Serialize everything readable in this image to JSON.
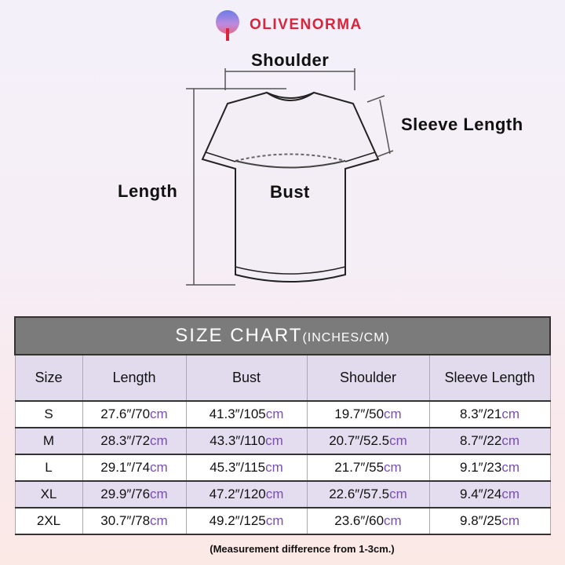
{
  "brand": {
    "name": "OLIVENORMA"
  },
  "diagram": {
    "shoulder": "Shoulder",
    "sleeve_length": "Sleeve Length",
    "length": "Length",
    "bust": "Bust"
  },
  "table": {
    "title": "SIZE CHART",
    "title_units": "(INCHES/CM)",
    "headers": [
      "Size",
      "Length",
      "Bust",
      "Shoulder",
      "Sleeve Length"
    ],
    "rows": [
      {
        "size": "S",
        "length": "27.6″/70",
        "bust": "41.3″/105",
        "shoulder": "19.7″/50",
        "sleeve": "8.3″/21"
      },
      {
        "size": "M",
        "length": "28.3″/72",
        "bust": "43.3″/110",
        "shoulder": "20.7″/52.5",
        "sleeve": "8.7″/22"
      },
      {
        "size": "L",
        "length": "29.1″/74",
        "bust": "45.3″/115",
        "shoulder": "21.7″/55",
        "sleeve": "9.1″/23"
      },
      {
        "size": "XL",
        "length": "29.9″/76",
        "bust": "47.2″/120",
        "shoulder": "22.6″/57.5",
        "sleeve": "9.4″/24"
      },
      {
        "size": "2XL",
        "length": "30.7″/78",
        "bust": "49.2″/125",
        "shoulder": "23.6″/60",
        "sleeve": "9.8″/25"
      }
    ],
    "unit": "cm"
  },
  "note": "(Measurement difference from 1-3cm.)",
  "colors": {
    "brand": "#d9243b",
    "title_bar": "#7b7b7b",
    "header_bg": "#e2dbee",
    "cm_text": "#7a4fb0"
  }
}
